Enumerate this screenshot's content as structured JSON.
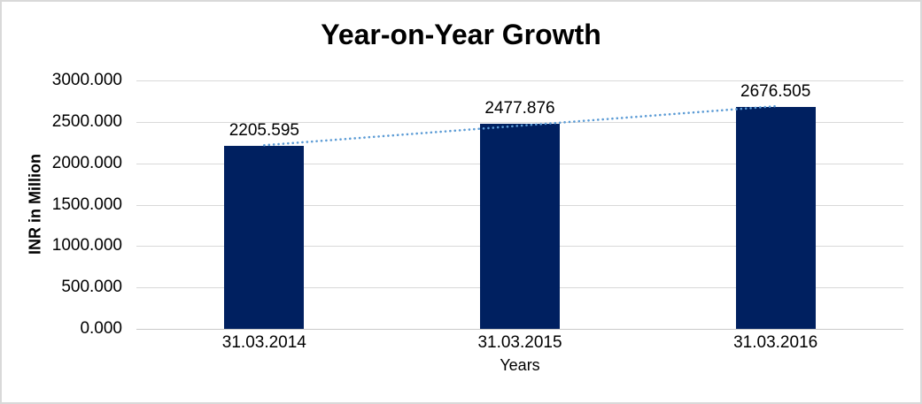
{
  "chart_data": {
    "type": "bar",
    "title": "Year-on-Year Growth",
    "xlabel": "Years",
    "ylabel": "INR in Million",
    "categories": [
      "31.03.2014",
      "31.03.2015",
      "31.03.2016"
    ],
    "values": [
      2205.595,
      2477.876,
      2676.505
    ],
    "value_labels": [
      "2205.595",
      "2477.876",
      "2676.505"
    ],
    "ylim": [
      0,
      3000
    ],
    "ytick_step": 500,
    "ytick_labels": [
      "0.000",
      "500.000",
      "1000.000",
      "1500.000",
      "2000.000",
      "2500.000",
      "3000.000"
    ],
    "grid": true,
    "legend": "none",
    "trendline": {
      "type": "linear",
      "style": "dotted"
    },
    "colors": {
      "bar": "#002060",
      "trendline": "#5B9BD5",
      "gridline": "#D9D9D9",
      "axis_line": "#C9C9C9",
      "text": "#000000",
      "frame_border": "#D9D9D9",
      "background": "#FFFFFF"
    }
  }
}
